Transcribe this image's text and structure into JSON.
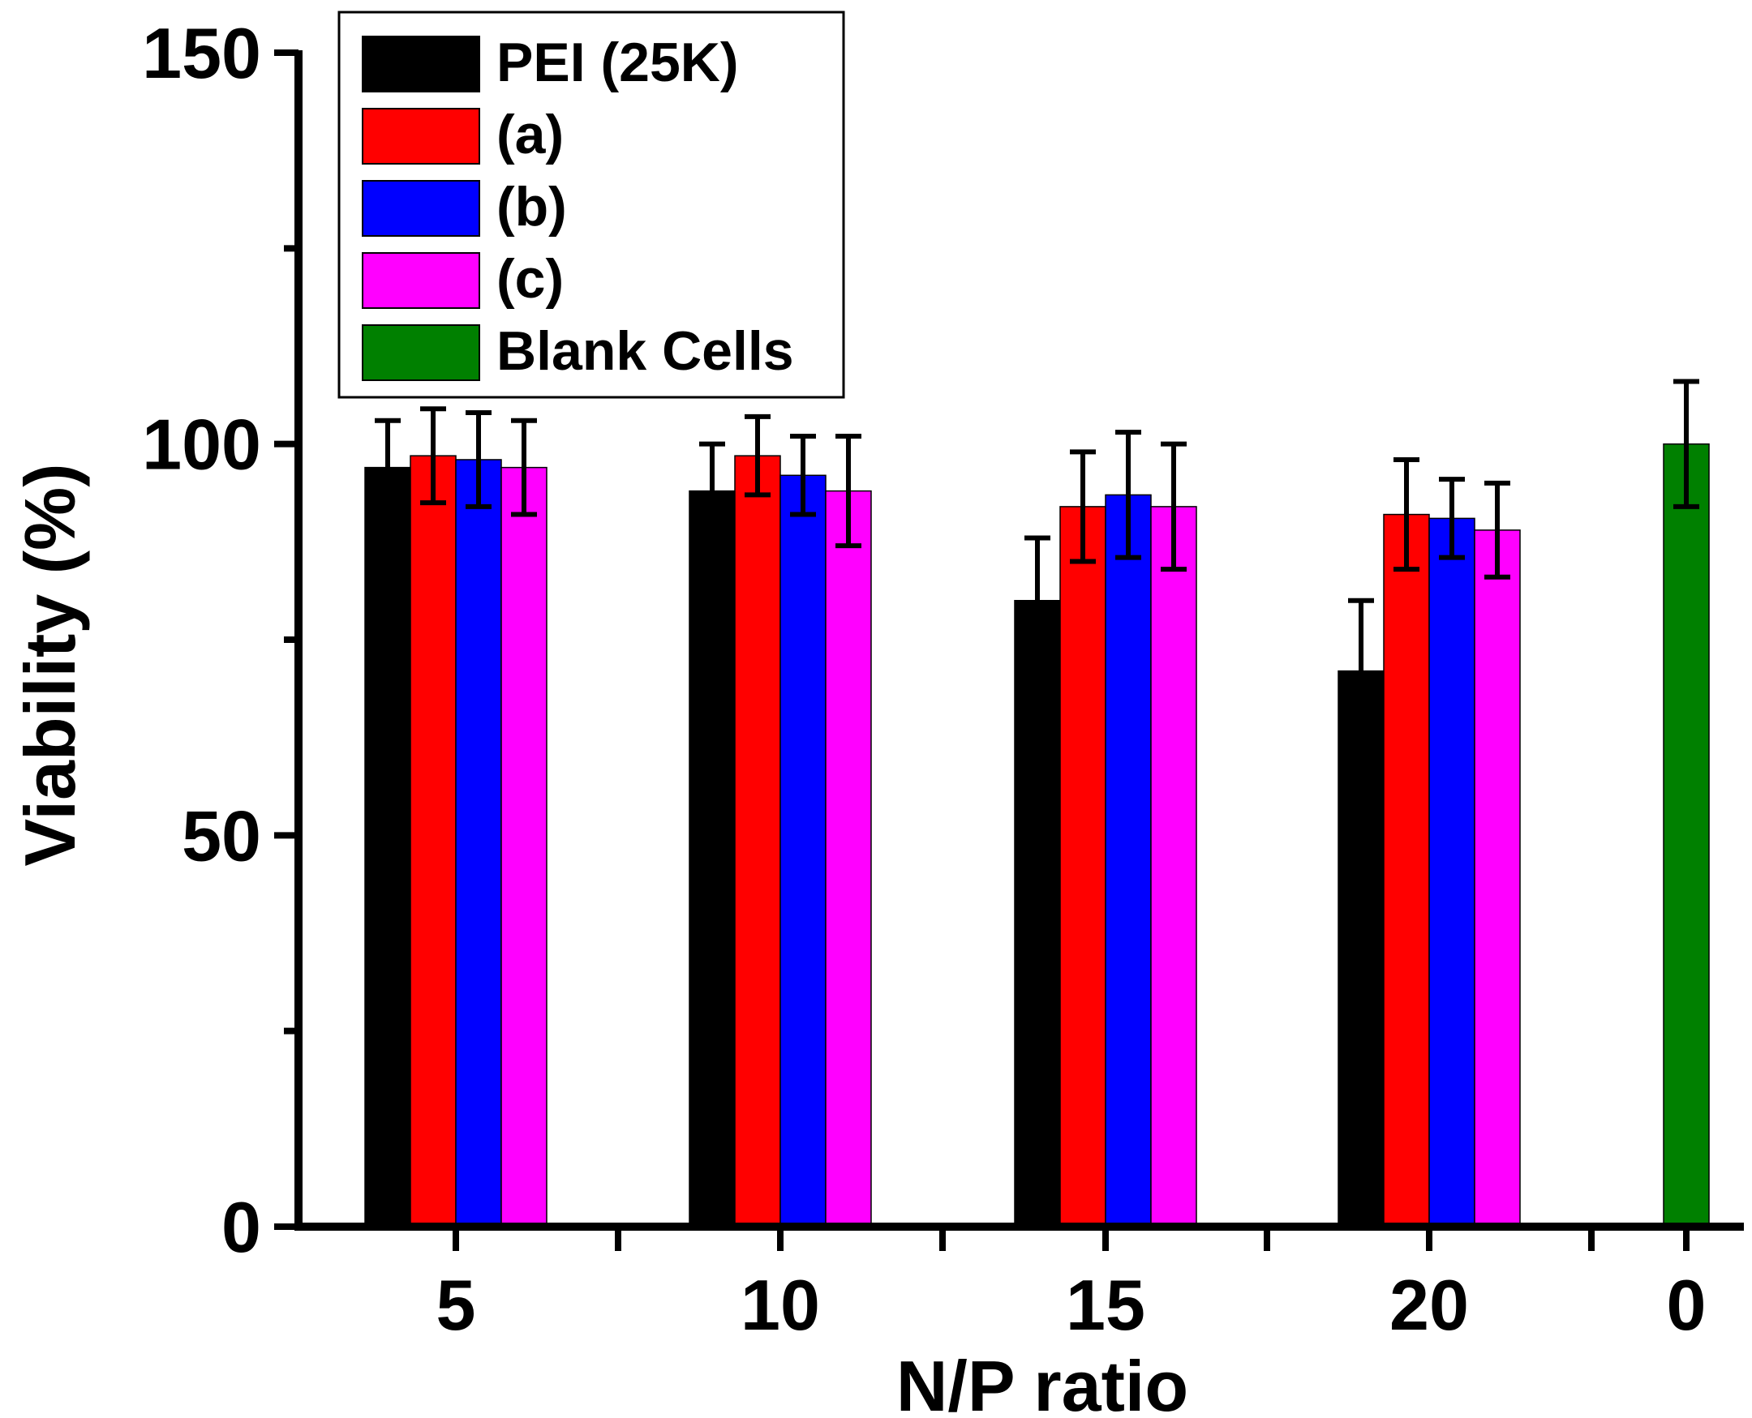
{
  "chart_data": {
    "type": "bar",
    "title": "",
    "xlabel": "N/P ratio",
    "ylabel": "Viability (%)",
    "ylim": [
      0,
      150
    ],
    "yticks": [
      0,
      50,
      100,
      150
    ],
    "grid": false,
    "legend_position": "top-left",
    "categories": [
      "5",
      "10",
      "15",
      "20",
      "0"
    ],
    "series": [
      {
        "name": "PEI (25K)",
        "color": "#000000",
        "values": [
          97,
          94,
          80,
          71,
          null
        ],
        "errors": [
          6,
          6,
          8,
          9,
          null
        ]
      },
      {
        "name": "(a)",
        "color": "#ff0000",
        "values": [
          98.5,
          98.5,
          92,
          91,
          null
        ],
        "errors": [
          6,
          5,
          7,
          7,
          null
        ]
      },
      {
        "name": "(b)",
        "color": "#0000ff",
        "values": [
          98,
          96,
          93.5,
          90.5,
          null
        ],
        "errors": [
          6,
          5,
          8,
          5,
          null
        ]
      },
      {
        "name": "(c)",
        "color": "#ff00ff",
        "values": [
          97,
          94,
          92,
          89,
          null
        ],
        "errors": [
          6,
          7,
          8,
          6,
          null
        ]
      },
      {
        "name": "Blank Cells",
        "color": "#008000",
        "values": [
          null,
          null,
          null,
          null,
          100
        ],
        "errors": [
          null,
          null,
          null,
          null,
          8
        ]
      }
    ]
  }
}
